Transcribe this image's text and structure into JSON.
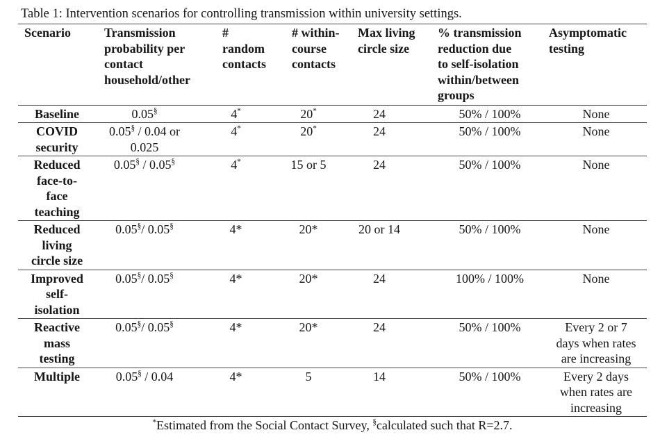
{
  "colors": {
    "background": "#ffffff",
    "text": "#161616",
    "rule": "#454545"
  },
  "title": "Table 1: Intervention scenarios for controlling transmission within university settings.",
  "table": {
    "columns": [
      {
        "id": "scenario",
        "label": "Scenario"
      },
      {
        "id": "transmission-probability",
        "label": "Transmission\nprobability per\ncontact\nhousehold/other"
      },
      {
        "id": "random-contacts",
        "label": "#\nrandom\ncontacts"
      },
      {
        "id": "within-course-contacts",
        "label": "# within-\ncourse\ncontacts"
      },
      {
        "id": "max-living-circle-size",
        "label": "Max living\ncircle size"
      },
      {
        "id": "transmission-reduction",
        "label": "% transmission\nreduction due\nto self-isolation\nwithin/between\ngroups"
      },
      {
        "id": "asymptomatic-testing",
        "label": "Asymptomatic\ntesting"
      }
    ],
    "rows": [
      {
        "scenario": "Baseline",
        "cells": [
          [
            {
              "t": "0.05"
            },
            {
              "t": "§",
              "sup": true
            }
          ],
          [
            {
              "t": "4"
            },
            {
              "t": "*",
              "sup": true
            }
          ],
          [
            {
              "t": "20"
            },
            {
              "t": "*",
              "sup": true
            }
          ],
          "24",
          "50% / 100%",
          "None"
        ]
      },
      {
        "scenario": "COVID\nsecurity",
        "cells": [
          [
            {
              "t": "0.05"
            },
            {
              "t": "§",
              "sup": true
            },
            {
              "t": " / 0.04 or\n0.025"
            }
          ],
          [
            {
              "t": "4"
            },
            {
              "t": "*",
              "sup": true
            }
          ],
          [
            {
              "t": "20"
            },
            {
              "t": "*",
              "sup": true
            }
          ],
          "24",
          "50% / 100%",
          "None"
        ]
      },
      {
        "scenario": "Reduced\nface-to-\nface\nteaching",
        "cells": [
          [
            {
              "t": "0.05"
            },
            {
              "t": "§",
              "sup": true
            },
            {
              "t": " / 0.05"
            },
            {
              "t": "§",
              "sup": true
            }
          ],
          [
            {
              "t": "4"
            },
            {
              "t": "*",
              "sup": true
            }
          ],
          "15 or 5",
          "24",
          "50% / 100%",
          "None"
        ]
      },
      {
        "scenario": "Reduced\nliving\ncircle size",
        "cells": [
          [
            {
              "t": "0.05"
            },
            {
              "t": "§",
              "sup": true
            },
            {
              "t": "/ 0.05"
            },
            {
              "t": "§",
              "sup": true
            }
          ],
          "4*",
          "20*",
          "20 or 14",
          "50% / 100%",
          "None"
        ]
      },
      {
        "scenario": "Improved\nself-\nisolation",
        "cells": [
          [
            {
              "t": "0.05"
            },
            {
              "t": "§",
              "sup": true
            },
            {
              "t": "/ 0.05"
            },
            {
              "t": "§",
              "sup": true
            }
          ],
          "4*",
          "20*",
          "24",
          "100% / 100%",
          "None"
        ]
      },
      {
        "scenario": "Reactive\nmass\ntesting",
        "cells": [
          [
            {
              "t": "0.05"
            },
            {
              "t": "§",
              "sup": true
            },
            {
              "t": "/ 0.05"
            },
            {
              "t": "§",
              "sup": true
            }
          ],
          "4*",
          "20*",
          "24",
          "50% / 100%",
          "Every 2 or 7\ndays when rates\nare increasing"
        ]
      },
      {
        "scenario": "Multiple",
        "cells": [
          [
            {
              "t": "0.05"
            },
            {
              "t": "§",
              "sup": true
            },
            {
              "t": " / 0.04"
            }
          ],
          "4*",
          "5",
          "14",
          "50% / 100%",
          "Every 2 days\nwhen rates are\nincreasing"
        ]
      }
    ]
  },
  "footnote": [
    {
      "t": "*",
      "sup": true
    },
    {
      "t": "Estimated from the Social Contact Survey, "
    },
    {
      "t": "§",
      "sup": true
    },
    {
      "t": "calculated such that R=2.7."
    }
  ]
}
